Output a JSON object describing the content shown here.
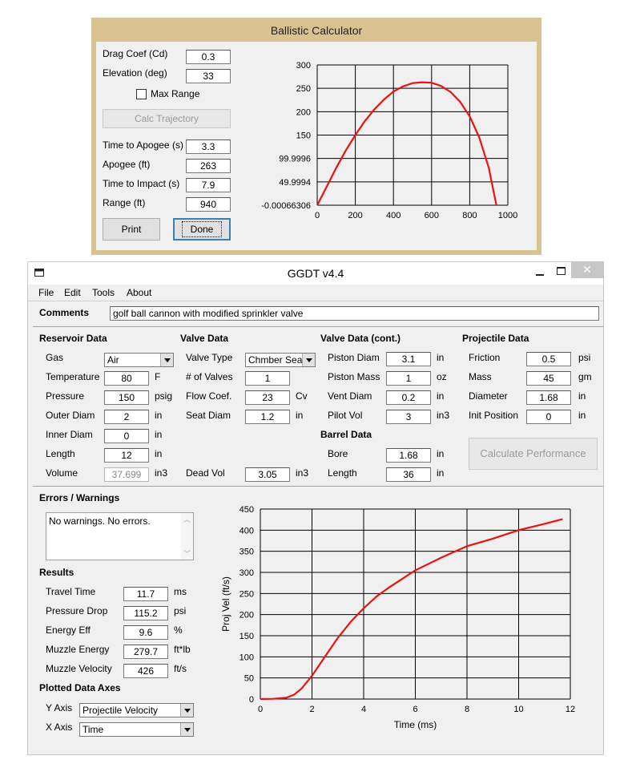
{
  "ballistic": {
    "title": "Ballistic Calculator",
    "drag_label": "Drag Coef (Cd)",
    "drag_value": "0.3",
    "elev_label": "Elevation (deg)",
    "elev_value": "33",
    "max_range_label": "Max Range",
    "calc_button": "Calc Trajectory",
    "apogee_time_label": "Time to Apogee (s)",
    "apogee_time_value": "3.3",
    "apogee_label": "Apogee (ft)",
    "apogee_value": "263",
    "impact_label": "Time to Impact (s)",
    "impact_value": "7.9",
    "range_label": "Range (ft)",
    "range_value": "940",
    "print_button": "Print",
    "done_button": "Done"
  },
  "ggdt": {
    "title": "GGDT v4.4",
    "menu": [
      "File",
      "Edit",
      "Tools",
      "About"
    ],
    "comments_label": "Comments",
    "comments_value": "golf ball cannon with modified sprinkler valve",
    "reservoir": {
      "header": "Reservoir Data",
      "gas_label": "Gas",
      "gas_value": "Air",
      "temp_label": "Temperature",
      "temp_value": "80",
      "temp_unit": "F",
      "pressure_label": "Pressure",
      "pressure_value": "150",
      "pressure_unit": "psig",
      "outer_label": "Outer Diam",
      "outer_value": "2",
      "outer_unit": "in",
      "inner_label": "Inner Diam",
      "inner_value": "0",
      "inner_unit": "in",
      "length_label": "Length",
      "length_value": "12",
      "length_unit": "in",
      "volume_label": "Volume",
      "volume_value": "37.699",
      "volume_unit": "in3"
    },
    "valve": {
      "header": "Valve Data",
      "type_label": "Valve Type",
      "type_value": "Chmber Seal",
      "num_label": "# of Valves",
      "num_value": "1",
      "flow_label": "Flow Coef.",
      "flow_value": "23",
      "flow_unit": "Cv",
      "seat_label": "Seat Diam",
      "seat_value": "1.2",
      "seat_unit": "in",
      "dead_label": "Dead Vol",
      "dead_value": "3.05",
      "dead_unit": "in3"
    },
    "valve_cont": {
      "header": "Valve Data (cont.)",
      "piston_diam_label": "Piston Diam",
      "piston_diam_value": "3.1",
      "piston_diam_unit": "in",
      "piston_mass_label": "Piston Mass",
      "piston_mass_value": "1",
      "piston_mass_unit": "oz",
      "vent_label": "Vent Diam",
      "vent_value": "0.2",
      "vent_unit": "in",
      "pilot_label": "Pilot Vol",
      "pilot_value": "3",
      "pilot_unit": "in3"
    },
    "barrel": {
      "header": "Barrel Data",
      "bore_label": "Bore",
      "bore_value": "1.68",
      "bore_unit": "in",
      "length_label": "Length",
      "length_value": "36",
      "length_unit": "in"
    },
    "projectile": {
      "header": "Projectile Data",
      "friction_label": "Friction",
      "friction_value": "0.5",
      "friction_unit": "psi",
      "mass_label": "Mass",
      "mass_value": "45",
      "mass_unit": "gm",
      "diam_label": "Diameter",
      "diam_value": "1.68",
      "diam_unit": "in",
      "init_label": "Init Position",
      "init_value": "0",
      "init_unit": "in"
    },
    "calc_perf_button": "Calculate Performance",
    "errors": {
      "header": "Errors / Warnings",
      "text": "No warnings.  No errors."
    },
    "results": {
      "header": "Results",
      "travel_label": "Travel Time",
      "travel_value": "11.7",
      "travel_unit": "ms",
      "drop_label": "Pressure Drop",
      "drop_value": "115.2",
      "drop_unit": "psi",
      "eff_label": "Energy Eff",
      "eff_value": "9.6",
      "eff_unit": "%",
      "energy_label": "Muzzle Energy",
      "energy_value": "279.7",
      "energy_unit": "ft*lb",
      "vel_label": "Muzzle Velocity",
      "vel_value": "426",
      "vel_unit": "ft/s"
    },
    "axes": {
      "header": "Plotted Data Axes",
      "y_label": "Y Axis",
      "y_value": "Projectile Velocity",
      "x_label": "X Axis",
      "x_value": "Time"
    }
  },
  "chart_data": [
    {
      "type": "line",
      "title": "",
      "xlabel": "",
      "ylabel": "",
      "xlim": [
        0,
        1000
      ],
      "ylim": [
        -0.00066306,
        300
      ],
      "x_ticks": [
        "0",
        "200",
        "400",
        "600",
        "800",
        "1000"
      ],
      "y_ticks": [
        "-0.00066306",
        "49.9994",
        "99.9996",
        "150",
        "200",
        "250",
        "300"
      ],
      "grid": true,
      "series": [
        {
          "color": "#ee1111",
          "points": [
            [
              0,
              0
            ],
            [
              50,
              40
            ],
            [
              100,
              80
            ],
            [
              150,
              117
            ],
            [
              200,
              150
            ],
            [
              250,
              180
            ],
            [
              300,
              205
            ],
            [
              350,
              226
            ],
            [
              400,
              243
            ],
            [
              450,
              254
            ],
            [
              500,
              261
            ],
            [
              550,
              263
            ],
            [
              600,
              262
            ],
            [
              650,
              255
            ],
            [
              700,
              242
            ],
            [
              750,
              221
            ],
            [
              800,
              190
            ],
            [
              850,
              145
            ],
            [
              900,
              80
            ],
            [
              940,
              0
            ]
          ]
        }
      ]
    },
    {
      "type": "line",
      "title": "",
      "xlabel": "Time (ms)",
      "ylabel": "Proj Vel (ft/s)",
      "xlim": [
        0,
        12
      ],
      "ylim": [
        0,
        450
      ],
      "x_ticks": [
        "0",
        "2",
        "4",
        "6",
        "8",
        "10",
        "12"
      ],
      "y_ticks": [
        "0",
        "50",
        "100",
        "150",
        "200",
        "250",
        "300",
        "350",
        "400",
        "450"
      ],
      "grid": true,
      "series": [
        {
          "color": "#ee1111",
          "points": [
            [
              0,
              0
            ],
            [
              0.5,
              0.5
            ],
            [
              1.0,
              3
            ],
            [
              1.3,
              10
            ],
            [
              1.6,
              25
            ],
            [
              2.0,
              55
            ],
            [
              2.5,
              100
            ],
            [
              3.0,
              145
            ],
            [
              3.5,
              183
            ],
            [
              4.0,
              215
            ],
            [
              4.5,
              243
            ],
            [
              5.0,
              265
            ],
            [
              5.5,
              285
            ],
            [
              6.0,
              305
            ],
            [
              7.0,
              335
            ],
            [
              8.0,
              362
            ],
            [
              9.0,
              380
            ],
            [
              10.0,
              400
            ],
            [
              11.0,
              415
            ],
            [
              11.7,
              426
            ]
          ]
        }
      ]
    }
  ]
}
